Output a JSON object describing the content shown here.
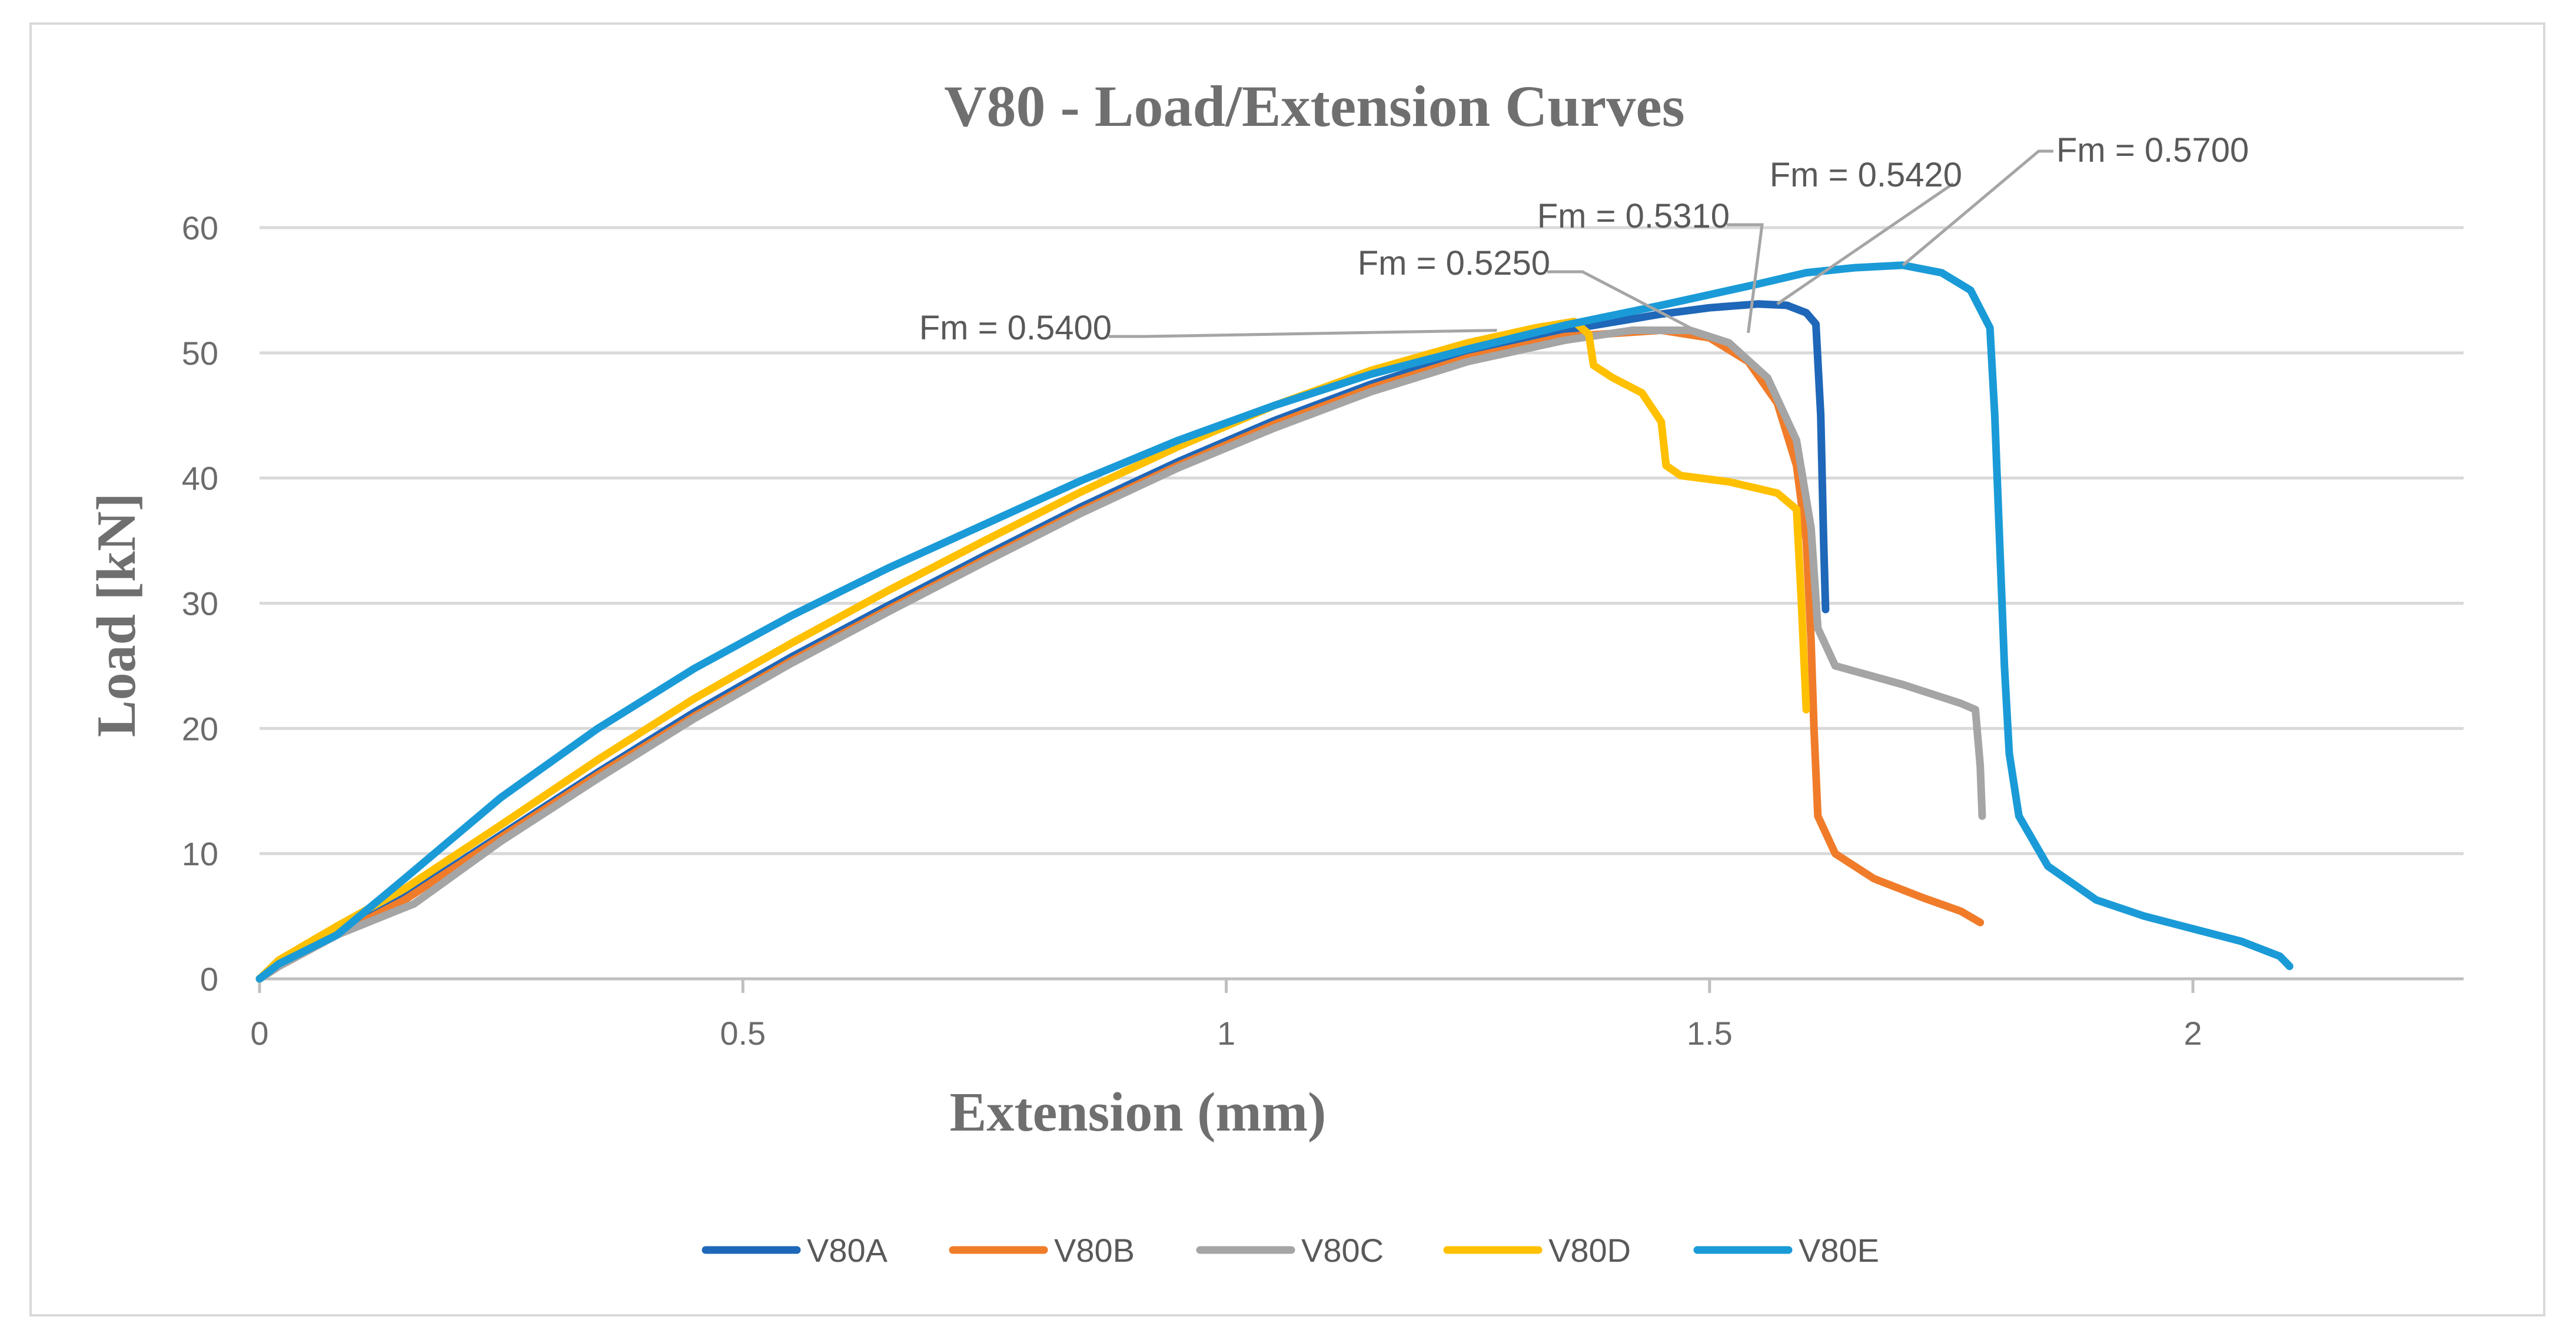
{
  "chart_data": {
    "type": "line",
    "title": "V80 - Load/Extension Curves",
    "xlabel": "Extension (mm)",
    "ylabel": "Load [kN]",
    "xlim": [
      0,
      2.28
    ],
    "ylim": [
      0,
      60
    ],
    "xticks": [
      0,
      0.5,
      1,
      1.5,
      2
    ],
    "xtick_labels": [
      "0",
      "0.5",
      "1",
      "1.5",
      "2"
    ],
    "yticks": [
      0,
      10,
      20,
      30,
      40,
      50,
      60
    ],
    "ytick_labels": [
      "0",
      "10",
      "20",
      "30",
      "40",
      "50",
      "60"
    ],
    "grid": "horizontal",
    "legend_position": "bottom",
    "series": [
      {
        "name": "V80A",
        "color": "#1f67b8",
        "points": [
          [
            0,
            0
          ],
          [
            0.02,
            1.0
          ],
          [
            0.08,
            3.5
          ],
          [
            0.15,
            6.5
          ],
          [
            0.25,
            11.5
          ],
          [
            0.35,
            16.5
          ],
          [
            0.45,
            21.3
          ],
          [
            0.55,
            25.7
          ],
          [
            0.65,
            29.8
          ],
          [
            0.75,
            33.8
          ],
          [
            0.85,
            37.7
          ],
          [
            0.95,
            41.3
          ],
          [
            1.05,
            44.6
          ],
          [
            1.15,
            47.5
          ],
          [
            1.25,
            50.0
          ],
          [
            1.35,
            51.8
          ],
          [
            1.45,
            53.1
          ],
          [
            1.5,
            53.6
          ],
          [
            1.55,
            53.9
          ],
          [
            1.58,
            53.8
          ],
          [
            1.6,
            53.2
          ],
          [
            1.61,
            52.3
          ],
          [
            1.615,
            45.0
          ],
          [
            1.618,
            35.0
          ],
          [
            1.62,
            29.5
          ]
        ]
      },
      {
        "name": "V80B",
        "color": "#f07c2a",
        "points": [
          [
            0,
            0
          ],
          [
            0.02,
            1.0
          ],
          [
            0.08,
            3.5
          ],
          [
            0.15,
            6.3
          ],
          [
            0.25,
            11.3
          ],
          [
            0.35,
            16.3
          ],
          [
            0.45,
            21.0
          ],
          [
            0.55,
            25.4
          ],
          [
            0.65,
            29.5
          ],
          [
            0.75,
            33.5
          ],
          [
            0.85,
            37.4
          ],
          [
            0.95,
            41.0
          ],
          [
            1.05,
            44.3
          ],
          [
            1.15,
            47.2
          ],
          [
            1.25,
            49.6
          ],
          [
            1.35,
            51.3
          ],
          [
            1.45,
            51.8
          ],
          [
            1.5,
            51.2
          ],
          [
            1.54,
            49.3
          ],
          [
            1.57,
            46.0
          ],
          [
            1.59,
            41.0
          ],
          [
            1.6,
            35.0
          ],
          [
            1.605,
            27.0
          ],
          [
            1.608,
            20.0
          ],
          [
            1.612,
            13.0
          ],
          [
            1.63,
            10.0
          ],
          [
            1.67,
            8.0
          ],
          [
            1.72,
            6.5
          ],
          [
            1.76,
            5.4
          ],
          [
            1.78,
            4.5
          ]
        ]
      },
      {
        "name": "V80C",
        "color": "#a5a5a5",
        "points": [
          [
            0,
            0
          ],
          [
            0.02,
            1.0
          ],
          [
            0.08,
            3.5
          ],
          [
            0.16,
            6.0
          ],
          [
            0.25,
            11.0
          ],
          [
            0.35,
            16.0
          ],
          [
            0.45,
            20.8
          ],
          [
            0.55,
            25.2
          ],
          [
            0.65,
            29.3
          ],
          [
            0.75,
            33.3
          ],
          [
            0.85,
            37.2
          ],
          [
            0.95,
            40.8
          ],
          [
            1.05,
            44.0
          ],
          [
            1.15,
            46.9
          ],
          [
            1.25,
            49.3
          ],
          [
            1.35,
            51.0
          ],
          [
            1.42,
            51.8
          ],
          [
            1.48,
            51.8
          ],
          [
            1.52,
            50.8
          ],
          [
            1.56,
            48.0
          ],
          [
            1.59,
            43.0
          ],
          [
            1.605,
            36.0
          ],
          [
            1.612,
            28.0
          ],
          [
            1.63,
            25.0
          ],
          [
            1.7,
            23.5
          ],
          [
            1.76,
            22.0
          ],
          [
            1.775,
            21.5
          ],
          [
            1.78,
            17.0
          ],
          [
            1.782,
            13.0
          ]
        ]
      },
      {
        "name": "V80D",
        "color": "#ffc000",
        "points": [
          [
            0,
            0
          ],
          [
            0.02,
            1.5
          ],
          [
            0.08,
            4.2
          ],
          [
            0.15,
            7.2
          ],
          [
            0.25,
            12.3
          ],
          [
            0.35,
            17.5
          ],
          [
            0.45,
            22.4
          ],
          [
            0.55,
            26.8
          ],
          [
            0.65,
            31.0
          ],
          [
            0.75,
            35.0
          ],
          [
            0.85,
            38.9
          ],
          [
            0.95,
            42.5
          ],
          [
            1.05,
            45.8
          ],
          [
            1.15,
            48.6
          ],
          [
            1.25,
            50.8
          ],
          [
            1.32,
            52.0
          ],
          [
            1.36,
            52.5
          ],
          [
            1.375,
            51.5
          ],
          [
            1.38,
            49.0
          ],
          [
            1.4,
            48.0
          ],
          [
            1.43,
            46.8
          ],
          [
            1.45,
            44.5
          ],
          [
            1.455,
            41.0
          ],
          [
            1.47,
            40.2
          ],
          [
            1.52,
            39.7
          ],
          [
            1.57,
            38.8
          ],
          [
            1.59,
            37.5
          ],
          [
            1.595,
            30.0
          ],
          [
            1.6,
            21.5
          ]
        ]
      },
      {
        "name": "V80E",
        "color": "#1a9bd7",
        "points": [
          [
            0,
            0
          ],
          [
            0.02,
            1.2
          ],
          [
            0.08,
            3.5
          ],
          [
            0.15,
            8.0
          ],
          [
            0.25,
            14.5
          ],
          [
            0.35,
            20.0
          ],
          [
            0.45,
            24.8
          ],
          [
            0.55,
            29.0
          ],
          [
            0.65,
            32.8
          ],
          [
            0.75,
            36.3
          ],
          [
            0.85,
            39.8
          ],
          [
            0.95,
            43.0
          ],
          [
            1.05,
            45.8
          ],
          [
            1.15,
            48.3
          ],
          [
            1.25,
            50.3
          ],
          [
            1.35,
            52.2
          ],
          [
            1.45,
            53.8
          ],
          [
            1.55,
            55.5
          ],
          [
            1.6,
            56.4
          ],
          [
            1.65,
            56.8
          ],
          [
            1.7,
            57.0
          ],
          [
            1.74,
            56.4
          ],
          [
            1.77,
            55.0
          ],
          [
            1.79,
            52.0
          ],
          [
            1.795,
            45.0
          ],
          [
            1.8,
            35.0
          ],
          [
            1.805,
            25.0
          ],
          [
            1.81,
            18.0
          ],
          [
            1.82,
            13.0
          ],
          [
            1.85,
            9.0
          ],
          [
            1.9,
            6.3
          ],
          [
            1.95,
            5.0
          ],
          [
            2.0,
            4.0
          ],
          [
            2.05,
            3.0
          ],
          [
            2.09,
            1.8
          ],
          [
            2.1,
            1.0
          ]
        ]
      }
    ],
    "annotations": [
      {
        "text": "Fm = 0.5400",
        "series": "V80D",
        "x": 1.28,
        "y": 51.8
      },
      {
        "text": "Fm = 0.5250",
        "series": "V80B",
        "x": 1.5,
        "y": 51.2
      },
      {
        "text": "Fm = 0.5310",
        "series": "V80C",
        "x": 1.54,
        "y": 51.6
      },
      {
        "text": "Fm = 0.5420",
        "series": "V80A",
        "x": 1.57,
        "y": 53.9
      },
      {
        "text": "Fm = 0.5700",
        "series": "V80E",
        "x": 1.7,
        "y": 57.0
      }
    ]
  }
}
